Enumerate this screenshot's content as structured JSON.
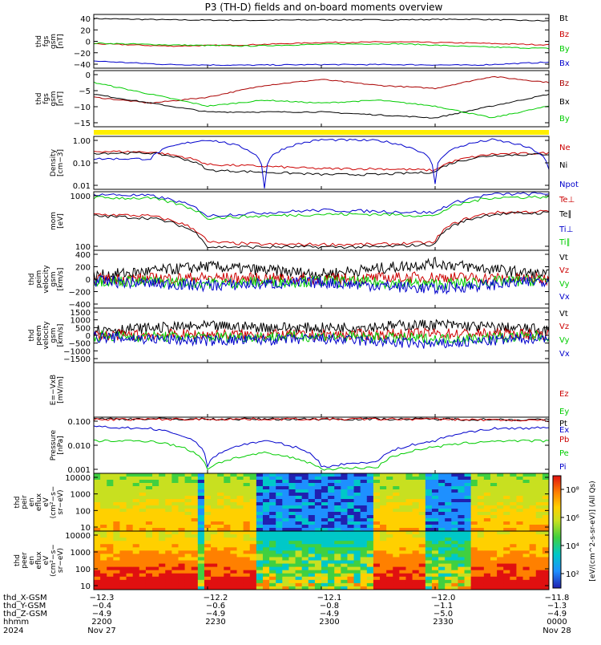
{
  "title": "P3 (TH-D) fields and on-board moments overview",
  "panels": [
    {
      "id": "fgs_gsm_tot",
      "ylabel": [
        "thd",
        "fgs",
        "gsm",
        "[nT]"
      ],
      "ticks": [
        "40",
        "20",
        "0",
        "−20",
        "−40"
      ],
      "legend": [
        {
          "text": "Bt",
          "color": "#000000"
        },
        {
          "text": "Bz",
          "color": "#cc0000"
        },
        {
          "text": "By",
          "color": "#00cc00"
        },
        {
          "text": "Bx",
          "color": "#0000cc"
        }
      ]
    },
    {
      "id": "fgs_gsm_zoom",
      "ylabel": [
        "thd",
        "fgs",
        "gsm",
        "[nT]"
      ],
      "ticks": [
        "0",
        "−5",
        "−10",
        "−15"
      ],
      "legend": [
        {
          "text": "Bz",
          "color": "#aa0000"
        },
        {
          "text": "Bx",
          "color": "#000000"
        },
        {
          "text": "By",
          "color": "#00cc00"
        }
      ]
    },
    {
      "id": "density",
      "ylabel": [
        "Density",
        "[cm−3]"
      ],
      "ticks": [
        "1.00",
        "0.10",
        "0.01"
      ],
      "legend": [
        {
          "text": "Ne",
          "color": "#cc0000"
        },
        {
          "text": "Ni",
          "color": "#000000"
        },
        {
          "text": "Npot",
          "color": "#0000cc"
        }
      ]
    },
    {
      "id": "temperature",
      "ylabel": [
        "mom",
        "[eV]"
      ],
      "ticks": [
        "1000",
        "100"
      ],
      "legend": [
        {
          "text": "Te⊥",
          "color": "#cc0000"
        },
        {
          "text": "Te∥",
          "color": "#000000"
        },
        {
          "text": "Ti⊥",
          "color": "#0000cc"
        },
        {
          "text": "Ti∥",
          "color": "#00cc00"
        }
      ]
    },
    {
      "id": "ion_velocity",
      "ylabel": [
        "thd",
        "peim",
        "velocity",
        "gsm",
        "[km/s]"
      ],
      "ticks": [
        "400",
        "200",
        "0",
        "−200",
        "−400"
      ],
      "legend": [
        {
          "text": "Vt",
          "color": "#000000"
        },
        {
          "text": "Vz",
          "color": "#cc0000"
        },
        {
          "text": "Vy",
          "color": "#00cc00"
        },
        {
          "text": "Vx",
          "color": "#0000cc"
        }
      ]
    },
    {
      "id": "electron_velocity",
      "ylabel": [
        "thd",
        "peem",
        "velocity",
        "gsm",
        "[km/s]"
      ],
      "ticks": [
        "1500",
        "1000",
        "500",
        "0",
        "−500",
        "−1000",
        "−1500"
      ],
      "legend": [
        {
          "text": "Vt",
          "color": "#000000"
        },
        {
          "text": "Vz",
          "color": "#cc0000"
        },
        {
          "text": "Vy",
          "color": "#00cc00"
        },
        {
          "text": "Vx",
          "color": "#0000cc"
        }
      ]
    },
    {
      "id": "efield",
      "ylabel": [
        "E=−VxB",
        "[mV/m]"
      ],
      "ticks": [],
      "legend": [
        {
          "text": "Ez",
          "color": "#cc0000"
        },
        {
          "text": "Ey",
          "color": "#00cc00"
        },
        {
          "text": "Ex",
          "color": "#0000cc"
        }
      ]
    },
    {
      "id": "pressure",
      "ylabel": [
        "Pressure",
        "[nPa]"
      ],
      "ticks": [
        "0.100",
        "0.010",
        "0.001"
      ],
      "legend": [
        {
          "text": "Pt",
          "color": "#000000"
        },
        {
          "text": "Pb",
          "color": "#cc0000"
        },
        {
          "text": "Pe",
          "color": "#00cc00"
        },
        {
          "text": "Pi",
          "color": "#0000cc"
        }
      ]
    },
    {
      "id": "ion_spec",
      "ylabel": [
        "thd",
        "peir",
        "en",
        "eflux",
        "eV",
        "(cm²−s−",
        "sr−eV)"
      ],
      "ticks": [
        "10000",
        "1000",
        "100",
        "10"
      ],
      "legend": []
    },
    {
      "id": "electron_spec",
      "ylabel": [
        "thd",
        "peer",
        "en",
        "eflux",
        "eV",
        "(cm²−s−",
        "sr−eV)"
      ],
      "ticks": [
        "10000",
        "1000",
        "100",
        "10"
      ],
      "legend": []
    }
  ],
  "colorbar": {
    "ticks": [
      "10⁸",
      "10⁶",
      "10⁴",
      "10²"
    ],
    "label": "[eV/(cm^2-s-sr-eV)] (All Qs)"
  },
  "xaxis": {
    "row_labels": [
      "thd_X-GSM",
      "thd_Y-GSM",
      "thd_Z-GSM",
      "hhmm",
      "2024"
    ],
    "columns": [
      {
        "x": "−12.3",
        "y": "−0.4",
        "z": "−4.9",
        "hhmm": "2200",
        "date": "Nov 27"
      },
      {
        "x": "−12.2",
        "y": "−0.6",
        "z": "−4.9",
        "hhmm": "2230",
        "date": ""
      },
      {
        "x": "−12.1",
        "y": "−0.8",
        "z": "−4.9",
        "hhmm": "2300",
        "date": ""
      },
      {
        "x": "−12.0",
        "y": "−1.1",
        "z": "−5.0",
        "hhmm": "2330",
        "date": ""
      },
      {
        "x": "−11.8",
        "y": "−1.3",
        "z": "−4.9",
        "hhmm": "0000",
        "date": "Nov 28"
      }
    ]
  },
  "chart_data": [
    {
      "type": "line",
      "title": "",
      "x_start": "2024-11-27 22:00",
      "x_end": "2024-11-28 00:00",
      "ylim": [
        -45,
        45
      ],
      "series": [
        {
          "name": "Bt",
          "x": [
            "22:00",
            "22:20",
            "22:40",
            "23:00",
            "23:20",
            "23:40",
            "00:00"
          ],
          "values": [
            38,
            36,
            35,
            36,
            36,
            37,
            34
          ]
        },
        {
          "name": "Bz",
          "x": [
            "22:00",
            "22:20",
            "22:40",
            "23:00",
            "23:20",
            "23:40",
            "00:00"
          ],
          "values": [
            -4,
            -8,
            -6,
            -2,
            -1,
            -3,
            -6
          ]
        },
        {
          "name": "By",
          "x": [
            "22:00",
            "22:20",
            "22:40",
            "23:00",
            "23:20",
            "23:40",
            "00:00"
          ],
          "values": [
            -3,
            -6,
            -8,
            -5,
            -4,
            -9,
            -12
          ]
        },
        {
          "name": "Bx",
          "x": [
            "22:00",
            "22:20",
            "22:40",
            "23:00",
            "23:20",
            "23:40",
            "00:00"
          ],
          "values": [
            -33,
            -39,
            -40,
            -39,
            -39,
            -40,
            -35
          ]
        }
      ]
    },
    {
      "type": "line",
      "title": "",
      "ylim": [
        -17,
        2
      ],
      "series": [
        {
          "name": "Bz",
          "x": [
            "22:00",
            "22:15",
            "22:30",
            "22:45",
            "23:00",
            "23:15",
            "23:30",
            "23:45",
            "00:00"
          ],
          "values": [
            -7,
            -9,
            -7,
            -3,
            -1,
            -3,
            -4,
            0,
            -2
          ]
        },
        {
          "name": "Bx",
          "x": [
            "22:00",
            "22:15",
            "22:30",
            "22:45",
            "23:00",
            "23:15",
            "23:30",
            "23:45",
            "00:00"
          ],
          "values": [
            -6,
            -9,
            -12,
            -12,
            -12,
            -13,
            -14,
            -10,
            -6
          ]
        },
        {
          "name": "By",
          "x": [
            "22:00",
            "22:15",
            "22:30",
            "22:45",
            "23:00",
            "23:15",
            "23:30",
            "23:45",
            "00:00"
          ],
          "values": [
            -2,
            -6,
            -10,
            -8,
            -9,
            -8,
            -10,
            -14,
            -10
          ]
        }
      ]
    },
    {
      "type": "line",
      "title": "",
      "ylim": [
        0.005,
        3
      ],
      "yscale": "log",
      "series": [
        {
          "name": "Ne",
          "x": [
            "22:00",
            "22:15",
            "22:30",
            "22:45",
            "23:00",
            "23:15",
            "23:30",
            "23:45",
            "00:00"
          ],
          "values": [
            0.5,
            0.45,
            0.1,
            0.08,
            0.06,
            0.06,
            0.05,
            0.35,
            0.4
          ]
        },
        {
          "name": "Ni",
          "x": [
            "22:00",
            "22:15",
            "22:30",
            "22:45",
            "23:00",
            "23:15",
            "23:30",
            "23:45",
            "00:00"
          ],
          "values": [
            0.4,
            0.4,
            0.05,
            0.04,
            0.03,
            0.03,
            0.04,
            0.3,
            0.35
          ]
        },
        {
          "name": "Npot",
          "x": [
            "22:00",
            "22:15",
            "22:30",
            "22:45",
            "23:00",
            "23:15",
            "23:30",
            "23:45",
            "00:00"
          ],
          "values": [
            0.2,
            0.2,
            2.0,
            0.006,
            2.0,
            1.8,
            0.01,
            2.0,
            0.05
          ]
        }
      ]
    },
    {
      "type": "line",
      "title": "",
      "ylim": [
        30,
        5000
      ],
      "yscale": "log",
      "series": [
        {
          "name": "Te⊥",
          "x": [
            "22:00",
            "22:15",
            "22:30",
            "22:45",
            "23:00",
            "23:15",
            "23:30",
            "23:45",
            "00:00"
          ],
          "values": [
            700,
            600,
            60,
            50,
            50,
            50,
            60,
            800,
            900
          ]
        },
        {
          "name": "Te∥",
          "x": [
            "22:00",
            "22:15",
            "22:30",
            "22:45",
            "23:00",
            "23:15",
            "23:30",
            "23:45",
            "00:00"
          ],
          "values": [
            600,
            500,
            40,
            40,
            40,
            40,
            50,
            700,
            800
          ]
        },
        {
          "name": "Ti⊥",
          "x": [
            "22:00",
            "22:15",
            "22:30",
            "22:45",
            "23:00",
            "23:15",
            "23:30",
            "23:45",
            "00:00"
          ],
          "values": [
            4000,
            3500,
            600,
            800,
            1000,
            900,
            800,
            4000,
            4200
          ]
        },
        {
          "name": "Ti∥",
          "x": [
            "22:00",
            "22:15",
            "22:30",
            "22:45",
            "23:00",
            "23:15",
            "23:30",
            "23:45",
            "00:00"
          ],
          "values": [
            3000,
            2800,
            500,
            600,
            700,
            700,
            600,
            3000,
            3200
          ]
        }
      ]
    },
    {
      "type": "line",
      "title": "",
      "ylim": [
        -450,
        450
      ],
      "series": [
        {
          "name": "Vt",
          "x": [
            "22:00",
            "22:30",
            "23:00",
            "23:30",
            "00:00"
          ],
          "values": [
            50,
            200,
            80,
            250,
            60
          ]
        },
        {
          "name": "Vz",
          "x": [
            "22:00",
            "22:30",
            "23:00",
            "23:30",
            "00:00"
          ],
          "values": [
            0,
            20,
            0,
            30,
            0
          ]
        },
        {
          "name": "Vy",
          "x": [
            "22:00",
            "22:30",
            "23:00",
            "23:30",
            "00:00"
          ],
          "values": [
            -20,
            -60,
            -30,
            -80,
            -10
          ]
        },
        {
          "name": "Vx",
          "x": [
            "22:00",
            "22:30",
            "23:00",
            "23:30",
            "00:00"
          ],
          "values": [
            -30,
            -100,
            -50,
            -150,
            -20
          ]
        }
      ]
    },
    {
      "type": "line",
      "title": "",
      "ylim": [
        -1500,
        1500
      ],
      "series": [
        {
          "name": "Vt",
          "x": [
            "22:00",
            "22:30",
            "23:00",
            "23:30",
            "00:00"
          ],
          "values": [
            300,
            500,
            400,
            600,
            300
          ]
        },
        {
          "name": "Vz",
          "x": [
            "22:00",
            "22:30",
            "23:00",
            "23:30",
            "00:00"
          ],
          "values": [
            0,
            50,
            0,
            100,
            50
          ]
        },
        {
          "name": "Vy",
          "x": [
            "22:00",
            "22:30",
            "23:00",
            "23:30",
            "00:00"
          ],
          "values": [
            -50,
            -100,
            -50,
            -200,
            -50
          ]
        },
        {
          "name": "Vx",
          "x": [
            "22:00",
            "22:30",
            "23:00",
            "23:30",
            "00:00"
          ],
          "values": [
            -100,
            -300,
            -200,
            -500,
            -100
          ]
        }
      ]
    },
    {
      "type": "line",
      "title": "",
      "series": []
    },
    {
      "type": "line",
      "title": "",
      "ylim": [
        0.0005,
        0.3
      ],
      "yscale": "log",
      "series": [
        {
          "name": "Pt",
          "x": [
            "22:00",
            "22:30",
            "23:00",
            "23:30",
            "00:00"
          ],
          "values": [
            0.25,
            0.24,
            0.24,
            0.24,
            0.22
          ]
        },
        {
          "name": "Pb",
          "x": [
            "22:00",
            "22:30",
            "23:00",
            "23:30",
            "00:00"
          ],
          "values": [
            0.23,
            0.24,
            0.24,
            0.24,
            0.2
          ]
        },
        {
          "name": "Pe",
          "x": [
            "22:00",
            "22:15",
            "22:30",
            "22:45",
            "23:00",
            "23:15",
            "23:30",
            "23:45",
            "00:00"
          ],
          "values": [
            0.02,
            0.02,
            0.0008,
            0.005,
            0.0008,
            0.001,
            0.01,
            0.02,
            0.02
          ]
        },
        {
          "name": "Pi",
          "x": [
            "22:00",
            "22:15",
            "22:30",
            "22:45",
            "23:00",
            "23:15",
            "23:30",
            "23:45",
            "00:00"
          ],
          "values": [
            0.1,
            0.08,
            0.001,
            0.02,
            0.001,
            0.002,
            0.02,
            0.08,
            0.09
          ]
        }
      ]
    },
    {
      "type": "heatmap",
      "title": "",
      "ylim": [
        5,
        20000
      ],
      "yscale": "log",
      "colorbar": "log eflux"
    },
    {
      "type": "heatmap",
      "title": "",
      "ylim": [
        5,
        20000
      ],
      "yscale": "log",
      "colorbar": "log eflux"
    }
  ]
}
